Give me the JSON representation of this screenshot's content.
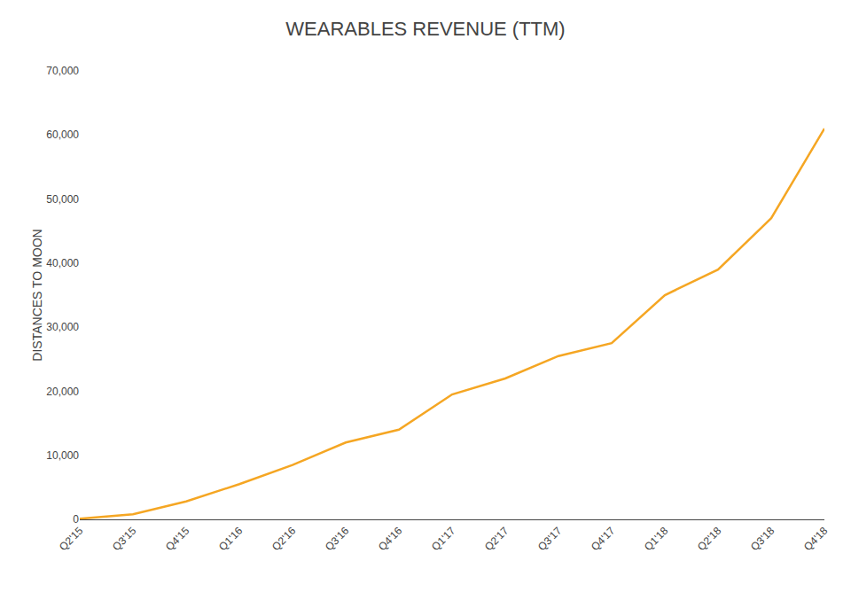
{
  "chart_data": {
    "type": "line",
    "title": "WEARABLES REVENUE (TTM)",
    "ylabel": "DISTANCES TO MOON",
    "categories": [
      "Q2'15",
      "Q3'15",
      "Q4'15",
      "Q1'16",
      "Q2'16",
      "Q3'16",
      "Q4'16",
      "Q1'17",
      "Q2'17",
      "Q3'17",
      "Q4'17",
      "Q1'18",
      "Q2'18",
      "Q3'18",
      "Q4'18"
    ],
    "values": [
      100,
      800,
      2800,
      5500,
      8500,
      12000,
      14000,
      19500,
      22000,
      25500,
      27500,
      35000,
      39000,
      47000,
      61000
    ],
    "color": "#F5A623",
    "ylim": [
      0,
      70000
    ],
    "yticks": [
      0,
      {
        "value": 10000,
        "label": "10,000"
      },
      {
        "value": 20000,
        "label": "20,000"
      },
      {
        "value": 30000,
        "label": "30,000"
      },
      {
        "value": 40000,
        "label": "40,000"
      },
      {
        "value": 50000,
        "label": "50,000"
      },
      {
        "value": 60000,
        "label": "60,000"
      },
      {
        "value": 70000,
        "label": "70,000"
      }
    ],
    "grid": false
  }
}
